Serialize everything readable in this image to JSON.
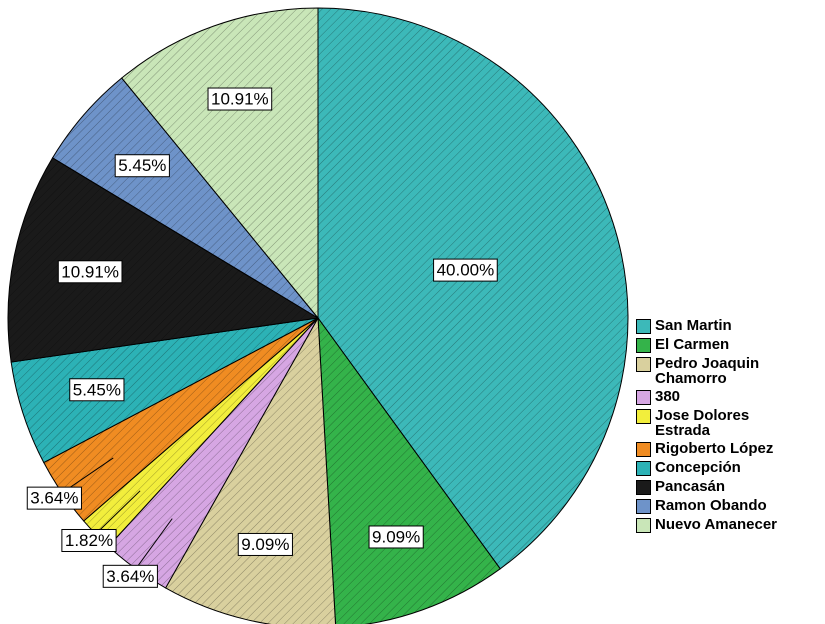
{
  "chart_data": {
    "type": "pie",
    "categories": [
      "San Martin",
      "El Carmen",
      "Pedro Joaquin Chamorro",
      "380",
      "Jose Dolores Estrada",
      "Rigoberto López",
      "Concepción",
      "Pancasán",
      "Ramon Obando",
      "Nuevo Amanecer"
    ],
    "values": [
      40,
      9.09,
      9.09,
      3.64,
      1.82,
      3.64,
      5.45,
      10.91,
      5.45,
      10.91
    ],
    "value_labels": [
      "40.00%",
      "9.09%",
      "9.09%",
      "3.64%",
      "1.82%",
      "3.64%",
      "5.45%",
      "10.91%",
      "5.45%",
      "10.91%"
    ],
    "colors": [
      "#3cb9b9",
      "#34b34a",
      "#d9d09e",
      "#d6a6e3",
      "#f2ee3c",
      "#f08c22",
      "#2cb2b6",
      "#1a1a1a",
      "#6e93c9",
      "#c9e6b8"
    ],
    "legend": "right"
  }
}
